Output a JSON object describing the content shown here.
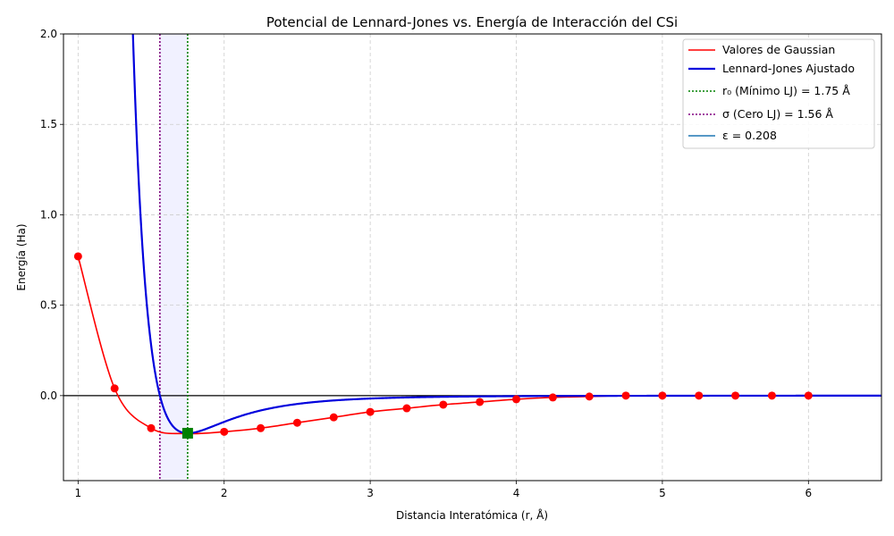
{
  "chart_data": {
    "type": "line",
    "title": "Potencial de Lennard-Jones vs. Energía de Interacción del CSi",
    "xlabel": "Distancia Interatómica (r, Å)",
    "ylabel": "Energía (Ha)",
    "xlim": [
      0.9,
      6.5
    ],
    "ylim": [
      -0.47,
      2.0
    ],
    "xticks": [
      1,
      2,
      3,
      4,
      5,
      6
    ],
    "yticks": [
      0.0,
      0.5,
      1.0,
      1.5,
      2.0
    ],
    "ytick_labels": [
      "0.0",
      "0.5",
      "1.0",
      "1.5",
      "2.0"
    ],
    "grid": true,
    "legend_position": "top-right",
    "series": [
      {
        "name": "Valores de Gaussian",
        "kind": "line+markers",
        "color": "#ff0000",
        "x": [
          1.0,
          1.25,
          1.5,
          1.75,
          2.0,
          2.25,
          2.5,
          2.75,
          3.0,
          3.25,
          3.5,
          3.75,
          4.0,
          4.25,
          4.5,
          4.75,
          5.0,
          5.25,
          5.5,
          5.75,
          6.0
        ],
        "y": [
          0.77,
          0.04,
          -0.18,
          -0.21,
          -0.2,
          -0.18,
          -0.15,
          -0.12,
          -0.09,
          -0.07,
          -0.05,
          -0.035,
          -0.02,
          -0.01,
          -0.005,
          0.0,
          0.0,
          0.0,
          0.0,
          0.0,
          0.0
        ]
      },
      {
        "name": "Lennard-Jones Ajustado",
        "kind": "line",
        "color": "#0000dd",
        "epsilon": 0.208,
        "sigma": 1.56
      }
    ],
    "vlines": [
      {
        "name": "r0",
        "label": "r₀ (Mínimo LJ) = 1.75 Å",
        "x": 1.75,
        "color": "#008000"
      },
      {
        "name": "sigma",
        "label": "σ (Cero LJ) = 1.56 Å",
        "x": 1.56,
        "color": "#800080"
      }
    ],
    "epsilon_label": "ε = 0.208",
    "epsilon_color": "#1f77b4",
    "hline": {
      "y": 0.0,
      "color": "#000000"
    },
    "min_marker": {
      "x": 1.75,
      "y": -0.208,
      "color": "#008000"
    },
    "shaded_band": {
      "x0": 1.56,
      "x1": 1.75,
      "color": "#e8e8ff"
    }
  }
}
